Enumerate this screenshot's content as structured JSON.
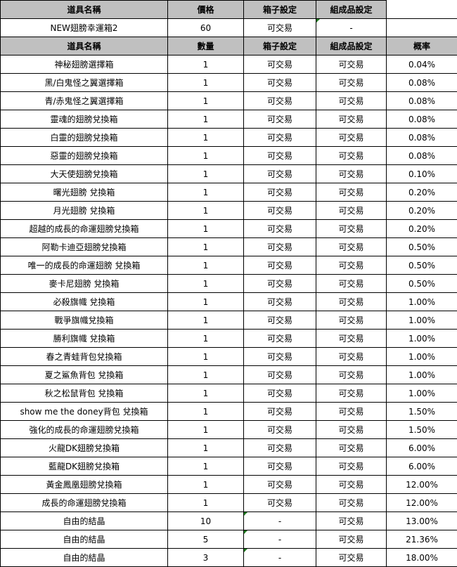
{
  "box_header": {
    "name": "道具名稱",
    "price": "價格",
    "box_setting": "箱子設定",
    "set_setting": "組成品設定"
  },
  "box": {
    "name": "NEW翅膀幸運箱2",
    "price": "60",
    "box_setting": "可交易",
    "set_setting": "-"
  },
  "items_header": {
    "name": "道具名稱",
    "qty": "數量",
    "box_setting": "箱子設定",
    "set_setting": "組成品設定",
    "rate": "概率"
  },
  "items": [
    {
      "name": "神秘翅膀選擇箱",
      "qty": "1",
      "box": "可交易",
      "set": "可交易",
      "rate": "0.04%"
    },
    {
      "name": "黑/白鬼怪之翼選擇箱",
      "qty": "1",
      "box": "可交易",
      "set": "可交易",
      "rate": "0.08%"
    },
    {
      "name": "青/赤鬼怪之翼選擇箱",
      "qty": "1",
      "box": "可交易",
      "set": "可交易",
      "rate": "0.08%"
    },
    {
      "name": "靈魂的翅膀兌換箱",
      "qty": "1",
      "box": "可交易",
      "set": "可交易",
      "rate": "0.08%"
    },
    {
      "name": "白靈的翅膀兌換箱",
      "qty": "1",
      "box": "可交易",
      "set": "可交易",
      "rate": "0.08%"
    },
    {
      "name": "惡靈的翅膀兌換箱",
      "qty": "1",
      "box": "可交易",
      "set": "可交易",
      "rate": "0.08%"
    },
    {
      "name": "大天使翅膀兌換箱",
      "qty": "1",
      "box": "可交易",
      "set": "可交易",
      "rate": "0.10%"
    },
    {
      "name": "曙光翅膀 兌換箱",
      "qty": "1",
      "box": "可交易",
      "set": "可交易",
      "rate": "0.20%"
    },
    {
      "name": "月光翅膀 兌換箱",
      "qty": "1",
      "box": "可交易",
      "set": "可交易",
      "rate": "0.20%"
    },
    {
      "name": "超越的成長的命運翅膀兌換箱",
      "qty": "1",
      "box": "可交易",
      "set": "可交易",
      "rate": "0.20%"
    },
    {
      "name": "阿勒卡迪亞翅膀兌換箱",
      "qty": "1",
      "box": "可交易",
      "set": "可交易",
      "rate": "0.50%"
    },
    {
      "name": "唯一的成長的命運翅膀 兌換箱",
      "qty": "1",
      "box": "可交易",
      "set": "可交易",
      "rate": "0.50%"
    },
    {
      "name": "麥卡尼翅膀 兌換箱",
      "qty": "1",
      "box": "可交易",
      "set": "可交易",
      "rate": "0.50%"
    },
    {
      "name": "必殺旗幟 兌換箱",
      "qty": "1",
      "box": "可交易",
      "set": "可交易",
      "rate": "1.00%"
    },
    {
      "name": "戰爭旗幟兌換箱",
      "qty": "1",
      "box": "可交易",
      "set": "可交易",
      "rate": "1.00%"
    },
    {
      "name": "勝利旗幟 兌換箱",
      "qty": "1",
      "box": "可交易",
      "set": "可交易",
      "rate": "1.00%"
    },
    {
      "name": "春之青蛙背包兌換箱",
      "qty": "1",
      "box": "可交易",
      "set": "可交易",
      "rate": "1.00%"
    },
    {
      "name": "夏之鯊魚背包 兌換箱",
      "qty": "1",
      "box": "可交易",
      "set": "可交易",
      "rate": "1.00%"
    },
    {
      "name": "秋之松鼠背包 兌換箱",
      "qty": "1",
      "box": "可交易",
      "set": "可交易",
      "rate": "1.00%"
    },
    {
      "name": "show me the doney背包 兌換箱",
      "qty": "1",
      "box": "可交易",
      "set": "可交易",
      "rate": "1.50%"
    },
    {
      "name": "強化的成長的命運翅膀兌換箱",
      "qty": "1",
      "box": "可交易",
      "set": "可交易",
      "rate": "1.50%"
    },
    {
      "name": "火龍DK翅膀兌換箱",
      "qty": "1",
      "box": "可交易",
      "set": "可交易",
      "rate": "6.00%"
    },
    {
      "name": "藍龍DK翅膀兌換箱",
      "qty": "1",
      "box": "可交易",
      "set": "可交易",
      "rate": "6.00%"
    },
    {
      "name": "黃金鳳凰翅膀兌換箱",
      "qty": "1",
      "box": "可交易",
      "set": "可交易",
      "rate": "12.00%"
    },
    {
      "name": "成長的命運翅膀兌換箱",
      "qty": "1",
      "box": "可交易",
      "set": "可交易",
      "rate": "12.00%"
    },
    {
      "name": "自由的結晶",
      "qty": "10",
      "box": "-",
      "set": "可交易",
      "rate": "13.00%"
    },
    {
      "name": "自由的結晶",
      "qty": "5",
      "box": "-",
      "set": "可交易",
      "rate": "21.36%"
    },
    {
      "name": "自由的結晶",
      "qty": "3",
      "box": "-",
      "set": "可交易",
      "rate": "18.00%"
    }
  ]
}
